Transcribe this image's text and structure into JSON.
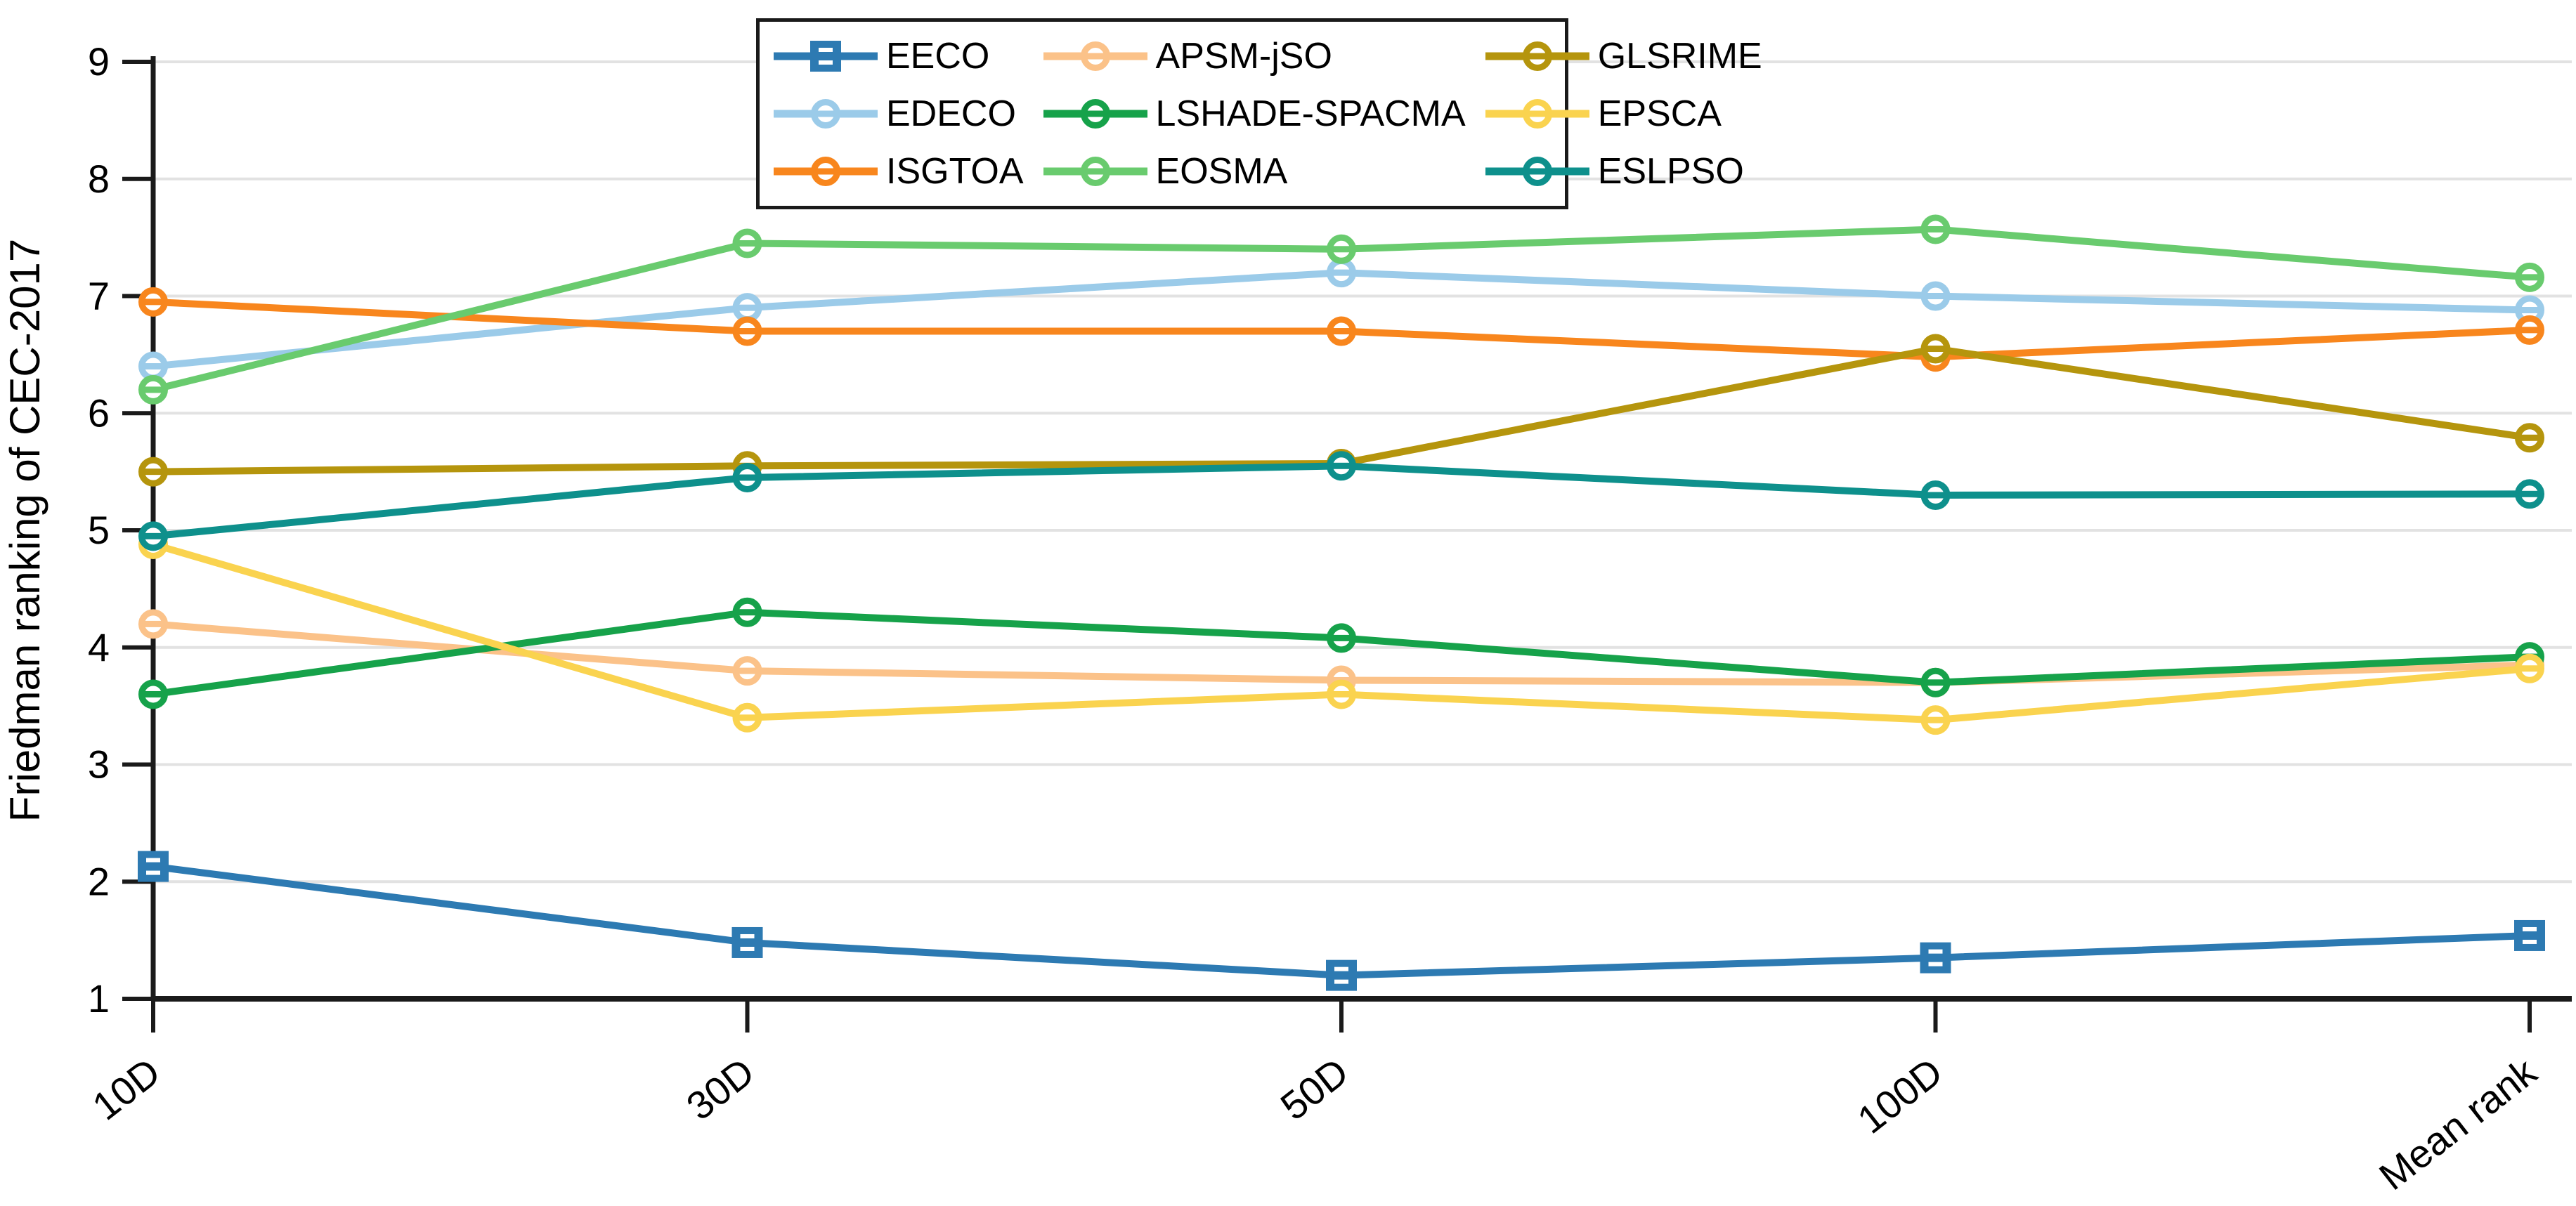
{
  "figure": {
    "ylabel": "Friedman ranking of CEC-2017"
  },
  "chart_data": {
    "type": "line",
    "title": "",
    "xlabel": "",
    "ylabel": "Friedman ranking of CEC-2017",
    "categories": [
      "10D",
      "30D",
      "50D",
      "100D",
      "Mean rank"
    ],
    "ylim": [
      1,
      9
    ],
    "yticks": [
      1,
      2,
      3,
      4,
      5,
      6,
      7,
      8,
      9
    ],
    "grid": "horizontal",
    "gridline_color": "#e2e2e2",
    "axis_color": "#1a1a1a",
    "legend_position": "top-center-inside",
    "legend_columns": 3,
    "series": [
      {
        "name": "EECO",
        "color": "#2d7ab2",
        "marker": "square",
        "values": [
          2.13,
          1.48,
          1.2,
          1.35,
          1.54
        ]
      },
      {
        "name": "EDECO",
        "color": "#9bcbe9",
        "marker": "circle",
        "values": [
          6.4,
          6.9,
          7.2,
          7.0,
          6.88
        ]
      },
      {
        "name": "ISGTOA",
        "color": "#f8861d",
        "marker": "circle",
        "values": [
          6.95,
          6.7,
          6.7,
          6.48,
          6.71
        ]
      },
      {
        "name": "APSM-jSO",
        "color": "#fbc289",
        "marker": "circle",
        "values": [
          4.2,
          3.8,
          3.72,
          3.7,
          3.85
        ]
      },
      {
        "name": "LSHADE-SPACMA",
        "color": "#16a24a",
        "marker": "circle",
        "values": [
          3.6,
          4.3,
          4.08,
          3.7,
          3.92
        ]
      },
      {
        "name": "EOSMA",
        "color": "#69cb6e",
        "marker": "circle",
        "values": [
          6.2,
          7.45,
          7.4,
          7.57,
          7.16
        ]
      },
      {
        "name": "GLSRIME",
        "color": "#b5950d",
        "marker": "circle",
        "values": [
          5.5,
          5.55,
          5.57,
          6.55,
          5.79
        ]
      },
      {
        "name": "EPSCA",
        "color": "#fad34f",
        "marker": "circle",
        "values": [
          4.88,
          3.4,
          3.6,
          3.38,
          3.82
        ]
      },
      {
        "name": "ESLPSO",
        "color": "#0e908c",
        "marker": "circle",
        "values": [
          4.95,
          5.45,
          5.55,
          5.3,
          5.31
        ]
      }
    ]
  }
}
